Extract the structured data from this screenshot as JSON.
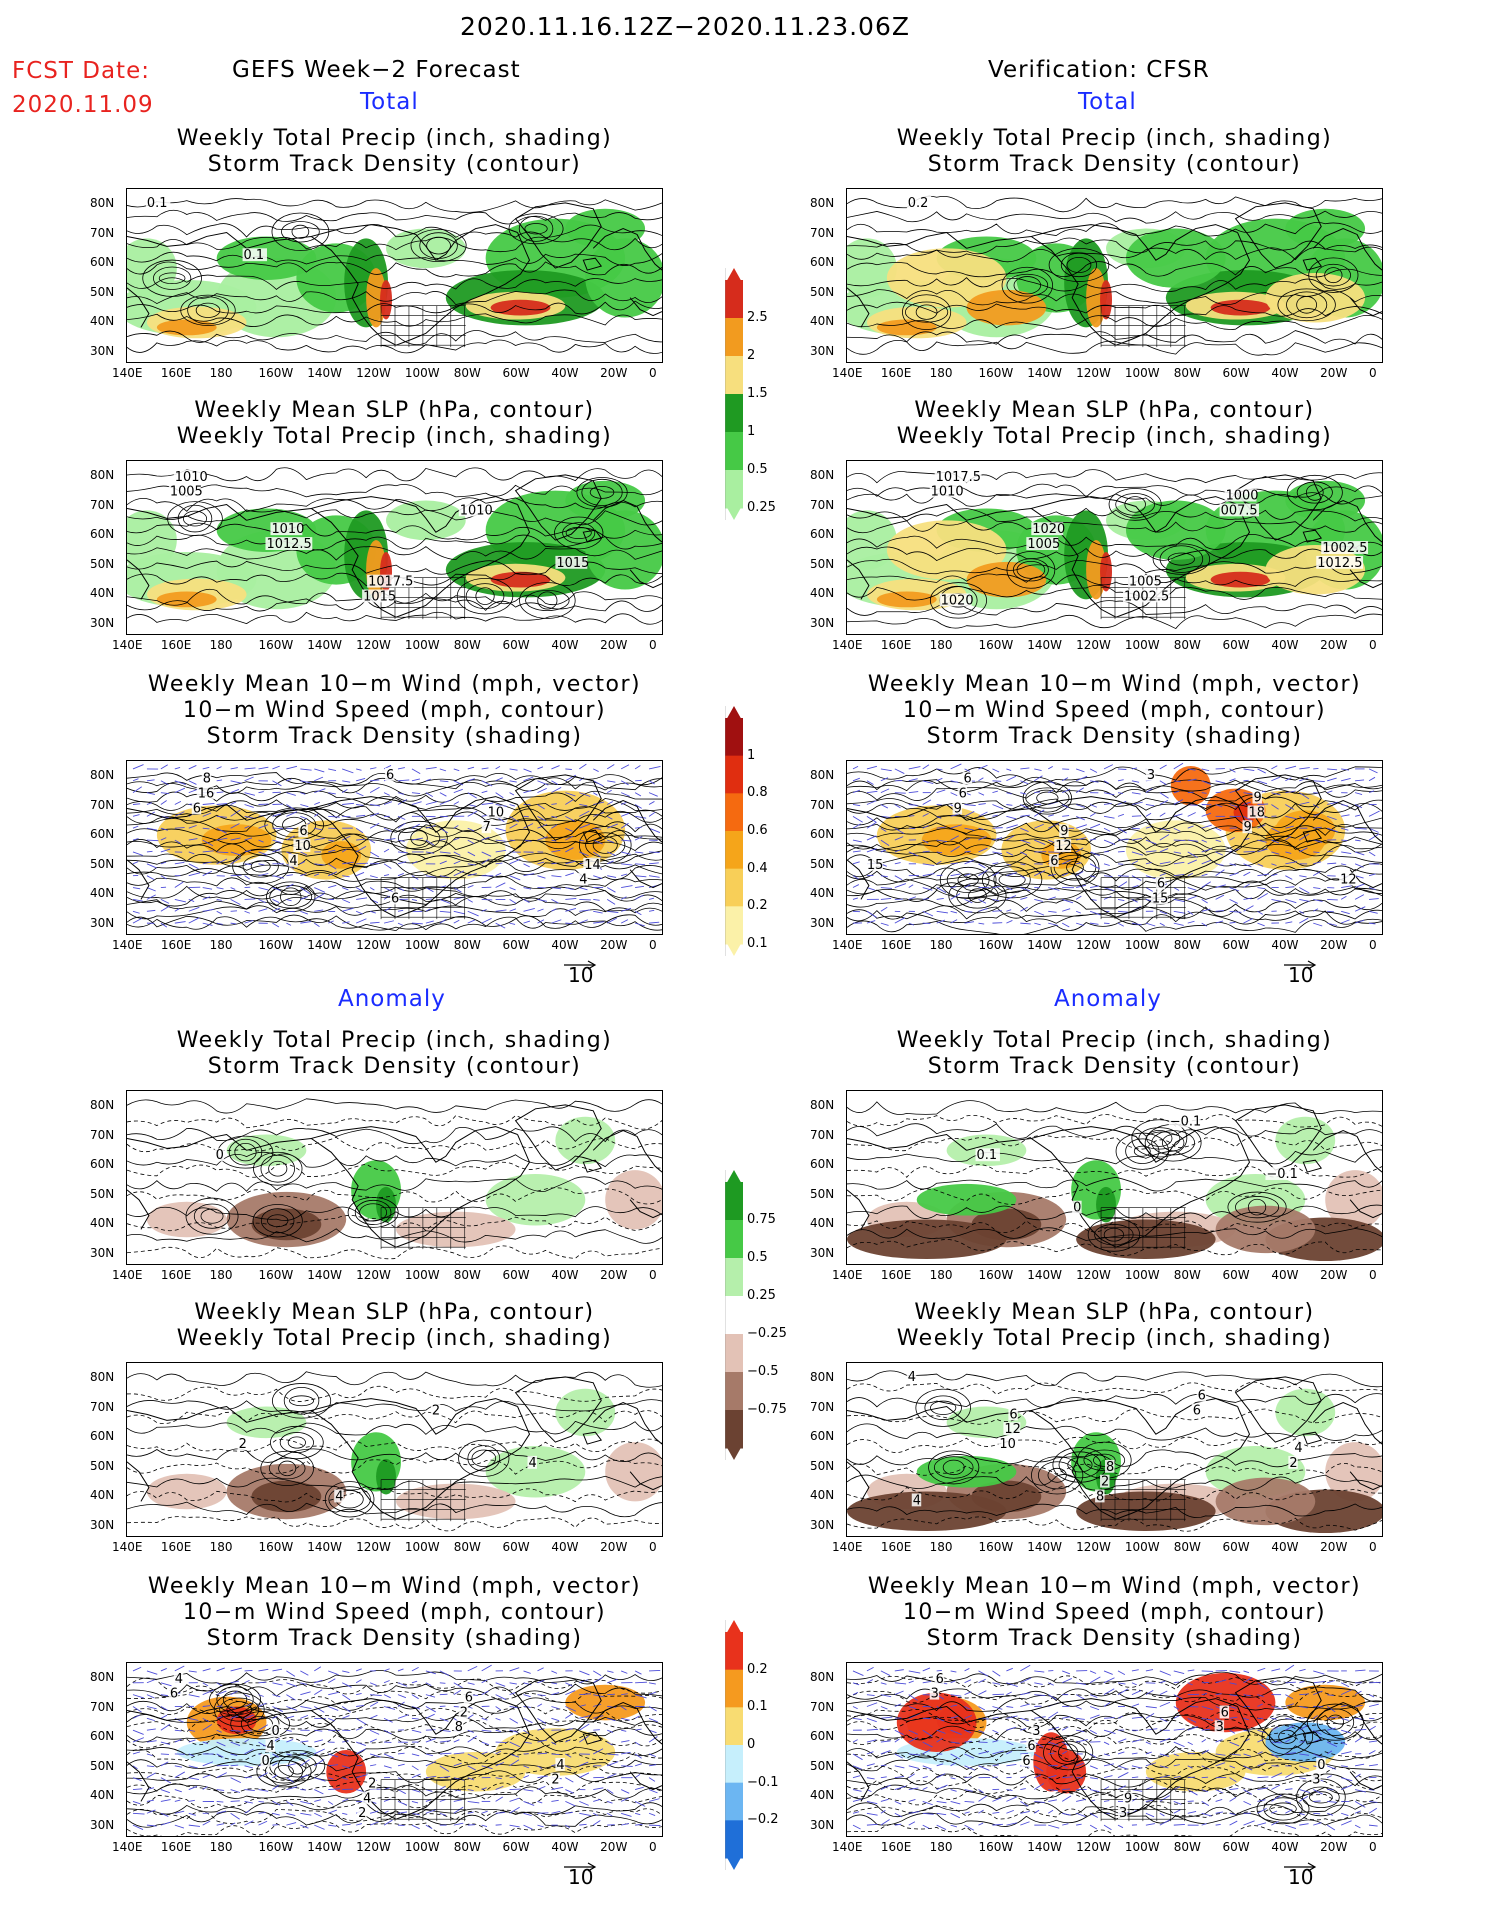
{
  "header": {
    "period": "2020.11.16.12Z−2020.11.23.06Z",
    "fcst_label": "FCST Date:",
    "fcst_date": "2020.11.09",
    "left_title": "GEFS Week−2 Forecast",
    "right_title": "Verification: CFSR",
    "total_label": "Total",
    "anomaly_label": "Anomaly"
  },
  "axes": {
    "lat_ticks": [
      "80N",
      "70N",
      "60N",
      "50N",
      "40N",
      "30N"
    ],
    "lon_ticks": [
      "140E",
      "160E",
      "180",
      "160W",
      "140W",
      "120W",
      "100W",
      "80W",
      "60W",
      "40W",
      "20W",
      "0"
    ]
  },
  "panels": {
    "precip_track": [
      "Weekly Total Precip (inch, shading)",
      "Storm Track Density (contour)"
    ],
    "slp_precip": [
      "Weekly Mean SLP (hPa, contour)",
      "Weekly Total Precip (inch, shading)"
    ],
    "wind_track": [
      "Weekly Mean 10−m Wind (mph, vector)",
      "10−m Wind Speed (mph, contour)",
      "Storm Track Density (shading)"
    ]
  },
  "vector_ref": "10",
  "colorbars": {
    "precip_total": {
      "labels": [
        "2.5",
        "2",
        "1.5",
        "1",
        "0.5",
        "0.25"
      ],
      "colors": [
        "#d62c1c",
        "#f29b1f",
        "#f7df7e",
        "#1f9a22",
        "#46c946",
        "#a9efa0"
      ]
    },
    "track_total": {
      "labels": [
        "1",
        "0.8",
        "0.6",
        "0.4",
        "0.2",
        "0.1"
      ],
      "colors": [
        "#a01010",
        "#e02e10",
        "#f56a10",
        "#f5a51a",
        "#f8cf58",
        "#fbf1a8"
      ]
    },
    "precip_anom": {
      "labels": [
        "0.75",
        "0.5",
        "0.25",
        "−0.25",
        "−0.5",
        "−0.75"
      ],
      "colors": [
        "#1e9a22",
        "#46c946",
        "#b5efab",
        "#ffffff",
        "#e3c2b6",
        "#a67a69",
        "#6b4232"
      ]
    },
    "track_anom": {
      "labels": [
        "0.2",
        "0.1",
        "0",
        "−0.1",
        "−0.2"
      ],
      "colors": [
        "#e8321c",
        "#f59a1f",
        "#f8dc72",
        "#c6effc",
        "#6cb6f2",
        "#1f6fd8"
      ]
    }
  },
  "map_labels": {
    "gefs_total_precip": [
      "0.1",
      "0.1"
    ],
    "cfsr_total_precip": [
      "0.2"
    ],
    "gefs_total_slp": [
      "1005",
      "1012.5",
      "1015",
      "1010",
      "1015",
      "1010",
      "1010",
      "1017.5"
    ],
    "cfsr_total_slp": [
      "1010",
      "1005",
      "1002.5",
      "007.5",
      "1012.5",
      "1017.5",
      "1020",
      "1005",
      "1000",
      "1002.5",
      "1020"
    ],
    "gefs_total_wind": [
      "6",
      "4",
      "6",
      "7",
      "4",
      "16",
      "10",
      "6",
      "10",
      "14",
      "8",
      "6"
    ],
    "cfsr_total_wind": [
      "9",
      "6",
      "3",
      "9",
      "12",
      "6",
      "12",
      "15",
      "18",
      "15",
      "6",
      "9",
      "6",
      "9"
    ],
    "gefs_anom_precip": [
      "0"
    ],
    "cfsr_anom_precip": [
      "0.1",
      "0",
      "−0.1",
      "−0.1"
    ],
    "gefs_anom_slp": [
      "2",
      "4",
      "2",
      "4"
    ],
    "cfsr_anom_slp": [
      "10",
      "8",
      "6",
      "2",
      "4",
      "12",
      "2",
      "6",
      "4",
      "4",
      "6",
      "8"
    ],
    "gefs_anom_wind": [
      "0",
      "2",
      "8",
      "2",
      "6",
      "4",
      "4",
      "2",
      "4",
      "4",
      "0",
      "2",
      "6"
    ],
    "cfsr_anom_wind": [
      "6",
      "3",
      "3",
      "3",
      "3",
      "6",
      "9",
      "6",
      "0",
      "6",
      "3"
    ]
  }
}
